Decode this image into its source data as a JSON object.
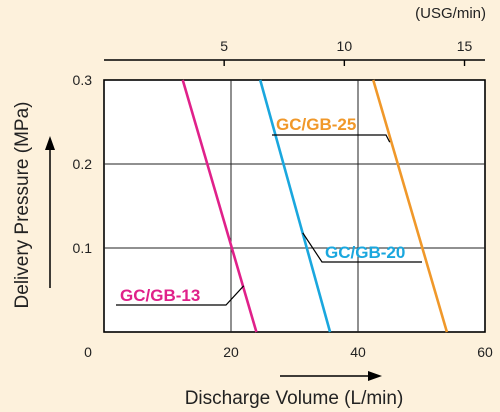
{
  "chart_data": {
    "type": "line",
    "x_axis": {
      "label": "Discharge Volume (L/min)",
      "range": [
        0,
        60
      ],
      "ticks": [
        "0",
        "20",
        "40",
        "60"
      ],
      "tick_values": [
        0,
        20,
        40,
        60
      ]
    },
    "x2_axis": {
      "unit_label": "(USG/min)",
      "ticks": [
        "5",
        "10",
        "15"
      ],
      "tick_values_usg": [
        5,
        10,
        15
      ],
      "usg_to_lpm": 3.785
    },
    "y_axis": {
      "label": "Delivery Pressure (MPa)",
      "range": [
        0,
        0.3
      ],
      "ticks": [
        "0.1",
        "0.2",
        "0.3"
      ],
      "tick_values": [
        0.1,
        0.2,
        0.3
      ]
    },
    "grid": true,
    "series": [
      {
        "name": "GC/GB-13",
        "color": "#e0218a",
        "points": [
          [
            24,
            0
          ],
          [
            12.4,
            0.3
          ]
        ]
      },
      {
        "name": "GC/GB-20",
        "color": "#1aa7de",
        "points": [
          [
            35.6,
            0
          ],
          [
            24.6,
            0.3
          ]
        ]
      },
      {
        "name": "GC/GB-25",
        "color": "#f0982a",
        "points": [
          [
            54,
            0
          ],
          [
            42.4,
            0.3
          ]
        ]
      }
    ]
  }
}
